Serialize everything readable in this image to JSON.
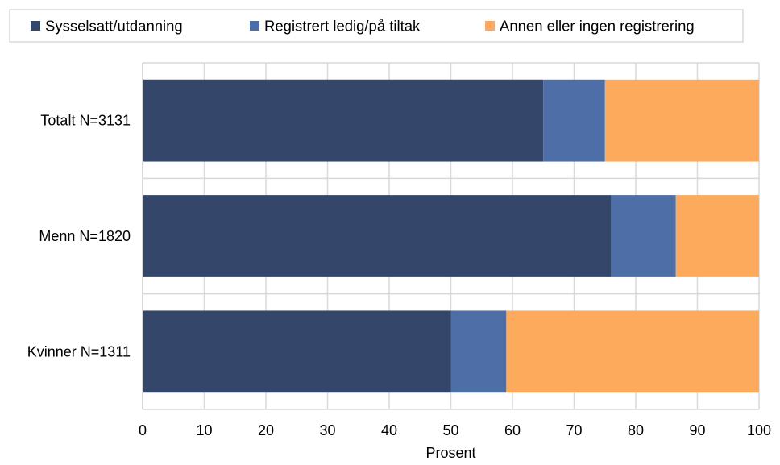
{
  "chart_data": {
    "type": "bar",
    "orientation": "horizontal",
    "stacked": true,
    "categories": [
      "Totalt N=3131",
      "Menn N=1820",
      "Kvinner N=1311"
    ],
    "series": [
      {
        "name": "Sysselsatt/utdanning",
        "color": "#35466b",
        "values": [
          65,
          76,
          50
        ]
      },
      {
        "name": "Registrert ledig/på tiltak",
        "color": "#4d6ea6",
        "values": [
          10,
          10.5,
          9
        ]
      },
      {
        "name": "Annen eller ingen registrering",
        "color": "#fdaa5c",
        "values": [
          25,
          13.5,
          41
        ]
      }
    ],
    "xlabel": "Prosent",
    "xlim": [
      0,
      100
    ],
    "x_ticks": [
      0,
      10,
      20,
      30,
      40,
      50,
      60,
      70,
      80,
      90,
      100
    ],
    "x_tick_labels": [
      "0",
      "10",
      "20",
      "30",
      "40",
      "50",
      "60",
      "70",
      "80",
      "90",
      "100"
    ],
    "grid": true,
    "grid_color": "#d9d9d9",
    "legend_position": "top"
  }
}
